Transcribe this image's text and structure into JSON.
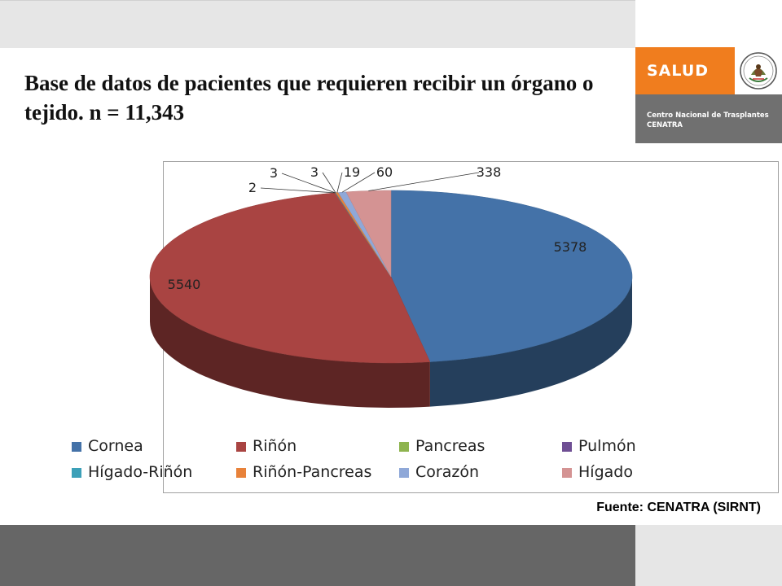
{
  "slide": {
    "title": "Base de datos de pacientes que requieren recibir un órgano o tejido. n = 11,343",
    "source": "Fuente: CENATRA (SIRNT)"
  },
  "branding": {
    "salud_label": "SALUD",
    "org_line1": "Centro Nacional de Trasplantes",
    "org_line2": "CENATRA",
    "orange": "#f07d1e",
    "gray": "#707070"
  },
  "chart_data": {
    "type": "pie",
    "style": "3d-exploded-none",
    "categories": [
      "Cornea",
      "Riñón",
      "Pancreas",
      "Pulmón",
      "Hígado-Riñón",
      "Riñón-Pancreas",
      "Corazón",
      "Hígado"
    ],
    "values": [
      5378,
      5540,
      2,
      3,
      3,
      19,
      60,
      338
    ],
    "data_labels": [
      "5378",
      "5540",
      "2",
      "3",
      "3",
      "19",
      "60",
      "338"
    ],
    "colors": [
      "#4472a8",
      "#a94442",
      "#8eb44f",
      "#6f4f94",
      "#3ca0b8",
      "#e8823a",
      "#8fa8d8",
      "#d49393"
    ],
    "legend_position": "bottom"
  }
}
